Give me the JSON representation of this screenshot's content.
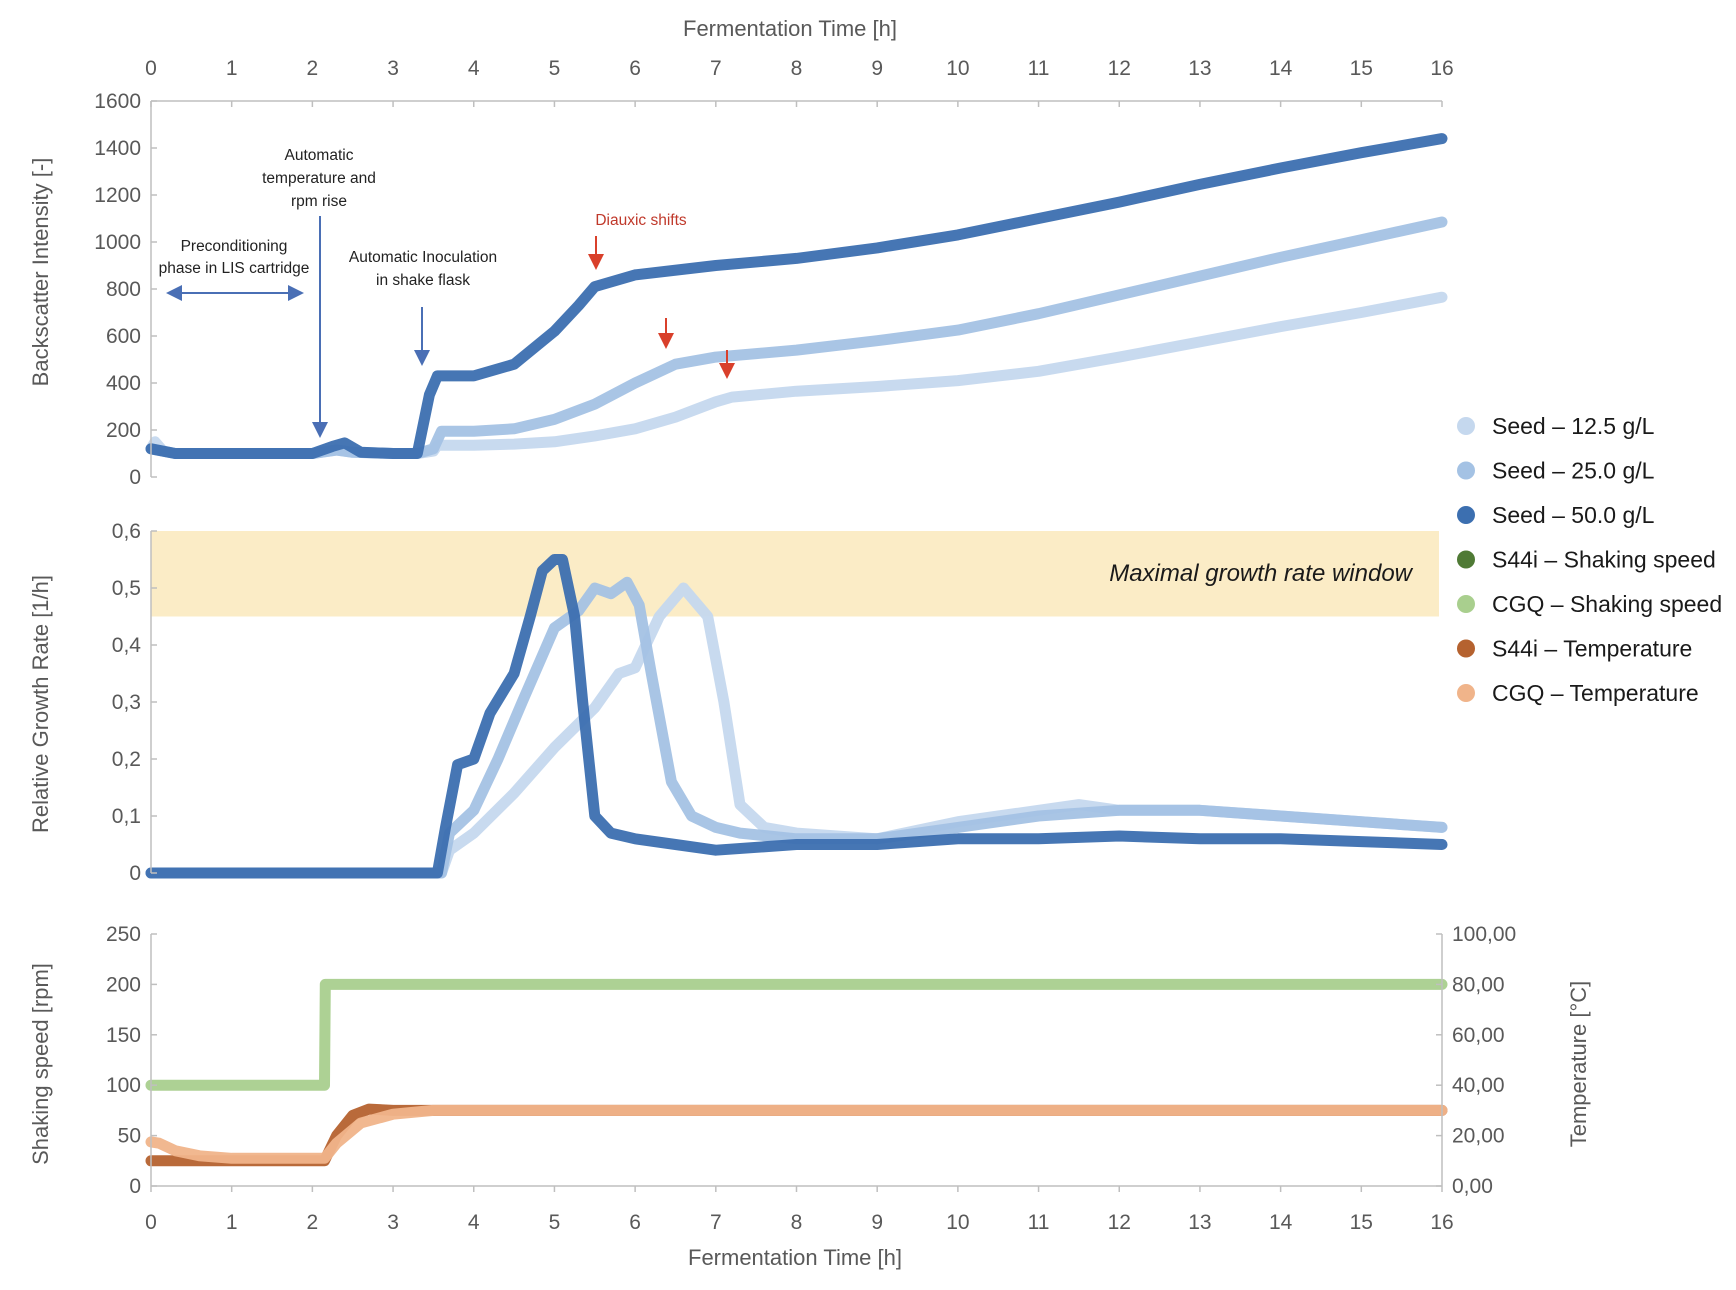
{
  "chart_data": [
    {
      "type": "line",
      "panel": "backscatter",
      "title": "",
      "top_xlabel": "Fermentation Time [h]",
      "ylabel": "Backscatter Intensity [-]",
      "xlim": [
        0,
        16
      ],
      "ylim": [
        0,
        1600
      ],
      "x_ticks": [
        "0",
        "1",
        "2",
        "3",
        "4",
        "5",
        "6",
        "7",
        "8",
        "9",
        "10",
        "11",
        "12",
        "13",
        "14",
        "15",
        "16"
      ],
      "y_ticks": [
        "0",
        "200",
        "400",
        "600",
        "800",
        "1000",
        "1200",
        "1400",
        "1600"
      ],
      "series": [
        {
          "name": "Seed – 12.5 g/L",
          "color": "#c5d8ee",
          "x": [
            0,
            0.05,
            0.15,
            0.3,
            1,
            2,
            2.3,
            2.5,
            3,
            3.3,
            3.5,
            3.55,
            4,
            4.5,
            5,
            5.5,
            6,
            6.5,
            7,
            7.2,
            8,
            9,
            10,
            11,
            12,
            13,
            14,
            15,
            16
          ],
          "y": [
            120,
            150,
            110,
            100,
            100,
            100,
            115,
            105,
            100,
            100,
            110,
            135,
            135,
            140,
            150,
            175,
            205,
            255,
            320,
            340,
            365,
            385,
            410,
            450,
            510,
            575,
            640,
            700,
            765
          ]
        },
        {
          "name": "Seed – 25.0 g/L",
          "color": "#a4c2e4",
          "x": [
            0,
            0.3,
            1,
            2,
            2.3,
            2.5,
            3,
            3.3,
            3.5,
            3.6,
            4,
            4.5,
            5,
            5.5,
            6,
            6.5,
            7,
            7.5,
            8,
            9,
            10,
            11,
            12,
            13,
            14,
            15,
            16
          ],
          "y": [
            120,
            100,
            100,
            100,
            115,
            105,
            100,
            100,
            120,
            195,
            195,
            205,
            245,
            310,
            400,
            480,
            510,
            525,
            540,
            580,
            625,
            695,
            775,
            855,
            935,
            1010,
            1085
          ]
        },
        {
          "name": "Seed – 50.0 g/L",
          "color": "#3c6fb0",
          "x": [
            0,
            0.3,
            1,
            2,
            2.25,
            2.4,
            2.6,
            3,
            3.3,
            3.45,
            3.55,
            3.7,
            4,
            4.5,
            5,
            5.3,
            5.5,
            6,
            7,
            8,
            9,
            10,
            11,
            12,
            13,
            14,
            15,
            16
          ],
          "y": [
            120,
            100,
            100,
            100,
            130,
            145,
            105,
            100,
            100,
            350,
            430,
            430,
            430,
            480,
            620,
            730,
            810,
            860,
            900,
            930,
            975,
            1030,
            1100,
            1170,
            1245,
            1315,
            1380,
            1440
          ]
        }
      ],
      "annotations": [
        {
          "text_lines": [
            "Preconditioning",
            "phase in LIS cartridge"
          ],
          "points_to_x_range": [
            0.2,
            1.9
          ]
        },
        {
          "text_lines": [
            "Automatic",
            "temperature and",
            "rpm rise"
          ],
          "points_to_x": 2.1
        },
        {
          "text_lines": [
            "Automatic Inoculation",
            "in shake flask"
          ],
          "points_to_x": 3.4
        },
        {
          "text_lines": [
            "Diauxic shifts"
          ],
          "color": "#c0392b",
          "points_to_x": [
            5.5,
            6.4,
            7.15
          ]
        }
      ]
    },
    {
      "type": "line",
      "panel": "growth_rate",
      "ylabel": "Relative Growth Rate [1/h]",
      "xlim": [
        0,
        16
      ],
      "ylim": [
        0,
        0.6
      ],
      "y_ticks": [
        "0",
        "0,1",
        "0,2",
        "0,3",
        "0,4",
        "0,5",
        "0,6"
      ],
      "shaded_band": {
        "label": "Maximal growth rate window",
        "y_range": [
          0.45,
          0.6
        ],
        "color": "#fbecc6"
      },
      "series": [
        {
          "name": "Seed – 12.5 g/L",
          "color": "#c5d8ee",
          "x": [
            0,
            3.6,
            3.7,
            4,
            4.5,
            5,
            5.5,
            5.8,
            6,
            6.3,
            6.6,
            6.9,
            7.1,
            7.3,
            7.6,
            8,
            9,
            10,
            11,
            11.5,
            12,
            13,
            14,
            15,
            16
          ],
          "y": [
            0,
            0,
            0.04,
            0.07,
            0.14,
            0.22,
            0.29,
            0.35,
            0.36,
            0.45,
            0.5,
            0.45,
            0.3,
            0.12,
            0.08,
            0.07,
            0.06,
            0.09,
            0.11,
            0.12,
            0.11,
            0.11,
            0.1,
            0.09,
            0.08
          ]
        },
        {
          "name": "Seed – 25.0 g/L",
          "color": "#a4c2e4",
          "x": [
            0,
            3.6,
            3.7,
            4,
            4.3,
            4.6,
            5,
            5.3,
            5.5,
            5.7,
            5.9,
            6.05,
            6.2,
            6.45,
            6.7,
            7,
            7.3,
            8,
            9,
            10,
            11,
            12,
            13,
            14,
            15,
            16
          ],
          "y": [
            0,
            0,
            0.07,
            0.11,
            0.2,
            0.3,
            0.43,
            0.46,
            0.5,
            0.49,
            0.51,
            0.47,
            0.35,
            0.16,
            0.1,
            0.08,
            0.07,
            0.06,
            0.06,
            0.08,
            0.1,
            0.11,
            0.11,
            0.1,
            0.09,
            0.08
          ]
        },
        {
          "name": "Seed – 50.0 g/L",
          "color": "#3c6fb0",
          "x": [
            0,
            3.55,
            3.65,
            3.8,
            4,
            4.2,
            4.5,
            4.7,
            4.85,
            5,
            5.1,
            5.25,
            5.35,
            5.5,
            5.7,
            6,
            6.5,
            7,
            8,
            9,
            10,
            11,
            12,
            13,
            14,
            15,
            16
          ],
          "y": [
            0,
            0,
            0.08,
            0.19,
            0.2,
            0.28,
            0.35,
            0.45,
            0.53,
            0.55,
            0.55,
            0.45,
            0.3,
            0.1,
            0.07,
            0.06,
            0.05,
            0.04,
            0.05,
            0.05,
            0.06,
            0.06,
            0.065,
            0.06,
            0.06,
            0.055,
            0.05
          ]
        }
      ]
    },
    {
      "type": "line",
      "panel": "process_parameters",
      "xlabel": "Fermentation Time [h]",
      "ylabel": "Shaking speed [rpm]",
      "y2label": "Temperature [°C]",
      "xlim": [
        0,
        16
      ],
      "ylim": [
        0,
        250
      ],
      "y2lim": [
        0,
        100
      ],
      "y_ticks": [
        "0",
        "50",
        "100",
        "150",
        "200",
        "250"
      ],
      "y2_ticks": [
        "0,00",
        "20,00",
        "40,00",
        "60,00",
        "80,00",
        "100,00"
      ],
      "series": [
        {
          "name": "S44i – Shaking speed",
          "axis": "left",
          "color": "#4f7a35",
          "x": [],
          "y": []
        },
        {
          "name": "CGQ – Shaking speed",
          "axis": "left",
          "color": "#a9cf8e",
          "x": [
            0,
            2.15,
            2.16,
            16
          ],
          "y": [
            100,
            100,
            200,
            200
          ]
        },
        {
          "name": "S44i – Temperature",
          "axis": "right",
          "color": "#b5622f",
          "x": [
            0,
            2,
            2.15,
            2.3,
            2.5,
            2.7,
            3,
            16
          ],
          "y": [
            10,
            10,
            10,
            20,
            28,
            30.5,
            30,
            30
          ]
        },
        {
          "name": "CGQ – Temperature",
          "axis": "right",
          "color": "#f0b48a",
          "x": [
            0,
            0.1,
            0.3,
            0.6,
            1,
            2,
            2.15,
            2.3,
            2.6,
            3,
            3.5,
            16
          ],
          "y": [
            17.5,
            17,
            14,
            12,
            11,
            11,
            11,
            17,
            25,
            28.5,
            30,
            30
          ]
        }
      ]
    }
  ],
  "legend": {
    "placement": "right",
    "entries": [
      {
        "label": "Seed – 12.5 g/L",
        "color": "#c5d8ee"
      },
      {
        "label": "Seed – 25.0 g/L",
        "color": "#a4c2e4"
      },
      {
        "label": "Seed – 50.0 g/L",
        "color": "#3c6fb0"
      },
      {
        "label": "S44i – Shaking speed",
        "color": "#4f7a35"
      },
      {
        "label": "CGQ – Shaking speed",
        "color": "#a9cf8e"
      },
      {
        "label": "S44i – Temperature",
        "color": "#b5622f"
      },
      {
        "label": "CGQ – Temperature",
        "color": "#f0b48a"
      }
    ]
  },
  "colors": {
    "axis": "#bfbfbf",
    "text": "#595959",
    "annotation_arrow": "#4a6fb5",
    "diauxic_arrow": "#d9402b"
  }
}
